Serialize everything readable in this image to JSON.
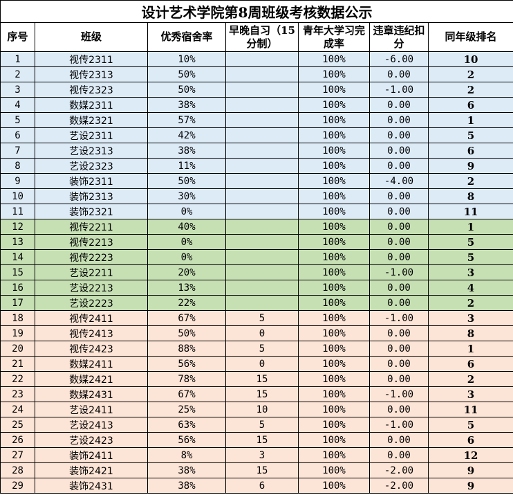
{
  "title": "设计艺术学院第8周班级考核数据公示",
  "headers": [
    "序号",
    "班级",
    "优秀宿舍率",
    "早晚自习（15分制）",
    "青年大学习完成率",
    "违章违纪扣分",
    "同年级排名"
  ],
  "group_colors": {
    "2023": "#DDEBF7",
    "2022": "#C6E0B4",
    "2024": "#FCE4D6"
  },
  "rows": [
    [
      "1",
      "视传2311",
      "10%",
      "",
      "100%",
      "-6.00",
      "10",
      "2023"
    ],
    [
      "2",
      "视传2313",
      "50%",
      "",
      "100%",
      "0.00",
      "2",
      "2023"
    ],
    [
      "3",
      "视传2323",
      "50%",
      "",
      "100%",
      "-1.00",
      "2",
      "2023"
    ],
    [
      "4",
      "数媒2311",
      "38%",
      "",
      "100%",
      "0.00",
      "6",
      "2023"
    ],
    [
      "5",
      "数媒2321",
      "57%",
      "",
      "100%",
      "0.00",
      "1",
      "2023"
    ],
    [
      "6",
      "艺设2311",
      "42%",
      "",
      "100%",
      "0.00",
      "5",
      "2023"
    ],
    [
      "7",
      "艺设2313",
      "38%",
      "",
      "100%",
      "0.00",
      "6",
      "2023"
    ],
    [
      "8",
      "艺设2323",
      "11%",
      "",
      "100%",
      "0.00",
      "9",
      "2023"
    ],
    [
      "9",
      "装饰2311",
      "50%",
      "",
      "100%",
      "-4.00",
      "2",
      "2023"
    ],
    [
      "10",
      "装饰2313",
      "30%",
      "",
      "100%",
      "0.00",
      "8",
      "2023"
    ],
    [
      "11",
      "装饰2321",
      "0%",
      "",
      "100%",
      "0.00",
      "11",
      "2023"
    ],
    [
      "12",
      "视传2211",
      "40%",
      "",
      "100%",
      "0.00",
      "1",
      "2022"
    ],
    [
      "13",
      "视传2213",
      "0%",
      "",
      "100%",
      "0.00",
      "5",
      "2022"
    ],
    [
      "14",
      "视传2223",
      "0%",
      "",
      "100%",
      "0.00",
      "5",
      "2022"
    ],
    [
      "15",
      "艺设2211",
      "20%",
      "",
      "100%",
      "-1.00",
      "3",
      "2022"
    ],
    [
      "16",
      "艺设2213",
      "13%",
      "",
      "100%",
      "0.00",
      "4",
      "2022"
    ],
    [
      "17",
      "艺设2223",
      "22%",
      "",
      "100%",
      "0.00",
      "2",
      "2022"
    ],
    [
      "18",
      "视传2411",
      "67%",
      "5",
      "100%",
      "-1.00",
      "3",
      "2024"
    ],
    [
      "19",
      "视传2413",
      "50%",
      "0",
      "100%",
      "0.00",
      "8",
      "2024"
    ],
    [
      "20",
      "视传2423",
      "88%",
      "5",
      "100%",
      "0.00",
      "1",
      "2024"
    ],
    [
      "21",
      "数媒2411",
      "56%",
      "0",
      "100%",
      "0.00",
      "6",
      "2024"
    ],
    [
      "22",
      "数媒2421",
      "78%",
      "15",
      "100%",
      "0.00",
      "2",
      "2024"
    ],
    [
      "23",
      "数媒2431",
      "67%",
      "15",
      "100%",
      "-1.00",
      "3",
      "2024"
    ],
    [
      "24",
      "艺设2411",
      "25%",
      "10",
      "100%",
      "0.00",
      "11",
      "2024"
    ],
    [
      "25",
      "艺设2413",
      "63%",
      "5",
      "100%",
      "-1.00",
      "5",
      "2024"
    ],
    [
      "26",
      "艺设2423",
      "56%",
      "15",
      "100%",
      "0.00",
      "6",
      "2024"
    ],
    [
      "27",
      "装饰2411",
      "8%",
      "3",
      "100%",
      "0.00",
      "12",
      "2024"
    ],
    [
      "28",
      "装饰2421",
      "38%",
      "15",
      "100%",
      "-2.00",
      "9",
      "2024"
    ],
    [
      "29",
      "装饰2431",
      "38%",
      "6",
      "100%",
      "-2.00",
      "9",
      "2024"
    ]
  ]
}
